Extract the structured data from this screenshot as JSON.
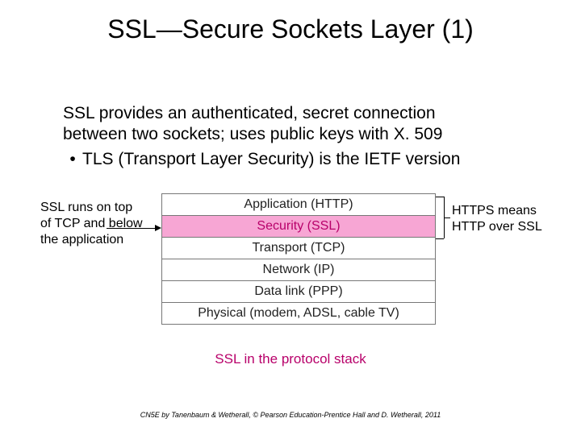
{
  "title": "SSL—Secure Sockets Layer (1)",
  "intro_line1": "SSL provides an authenticated, secret connection",
  "intro_line2": "between two sockets; uses public keys with X. 509",
  "bullet1": "TLS (Transport Layer Security) is the IETF version",
  "left_annotation": "SSL runs on top of TCP and below the application",
  "right_annotation": "HTTPS means HTTP over SSL",
  "stack": {
    "layers": [
      {
        "label": "Application (HTTP)",
        "highlight": false
      },
      {
        "label": "Security (SSL)",
        "highlight": true
      },
      {
        "label": "Transport (TCP)",
        "highlight": false
      },
      {
        "label": "Network (IP)",
        "highlight": false
      },
      {
        "label": "Data link (PPP)",
        "highlight": false
      },
      {
        "label": "Physical (modem, ADSL, cable TV)",
        "highlight": false
      }
    ],
    "highlight_color": "#f7a6d4",
    "highlight_text_color": "#b8006a",
    "border_color": "#777777"
  },
  "caption": "SSL in the protocol stack",
  "footer": "CN5E by Tanenbaum & Wetherall, © Pearson Education-Prentice Hall and D. Wetherall, 2011",
  "colors": {
    "title": "#000000",
    "body": "#000000",
    "caption": "#b8006a",
    "background": "#ffffff"
  }
}
